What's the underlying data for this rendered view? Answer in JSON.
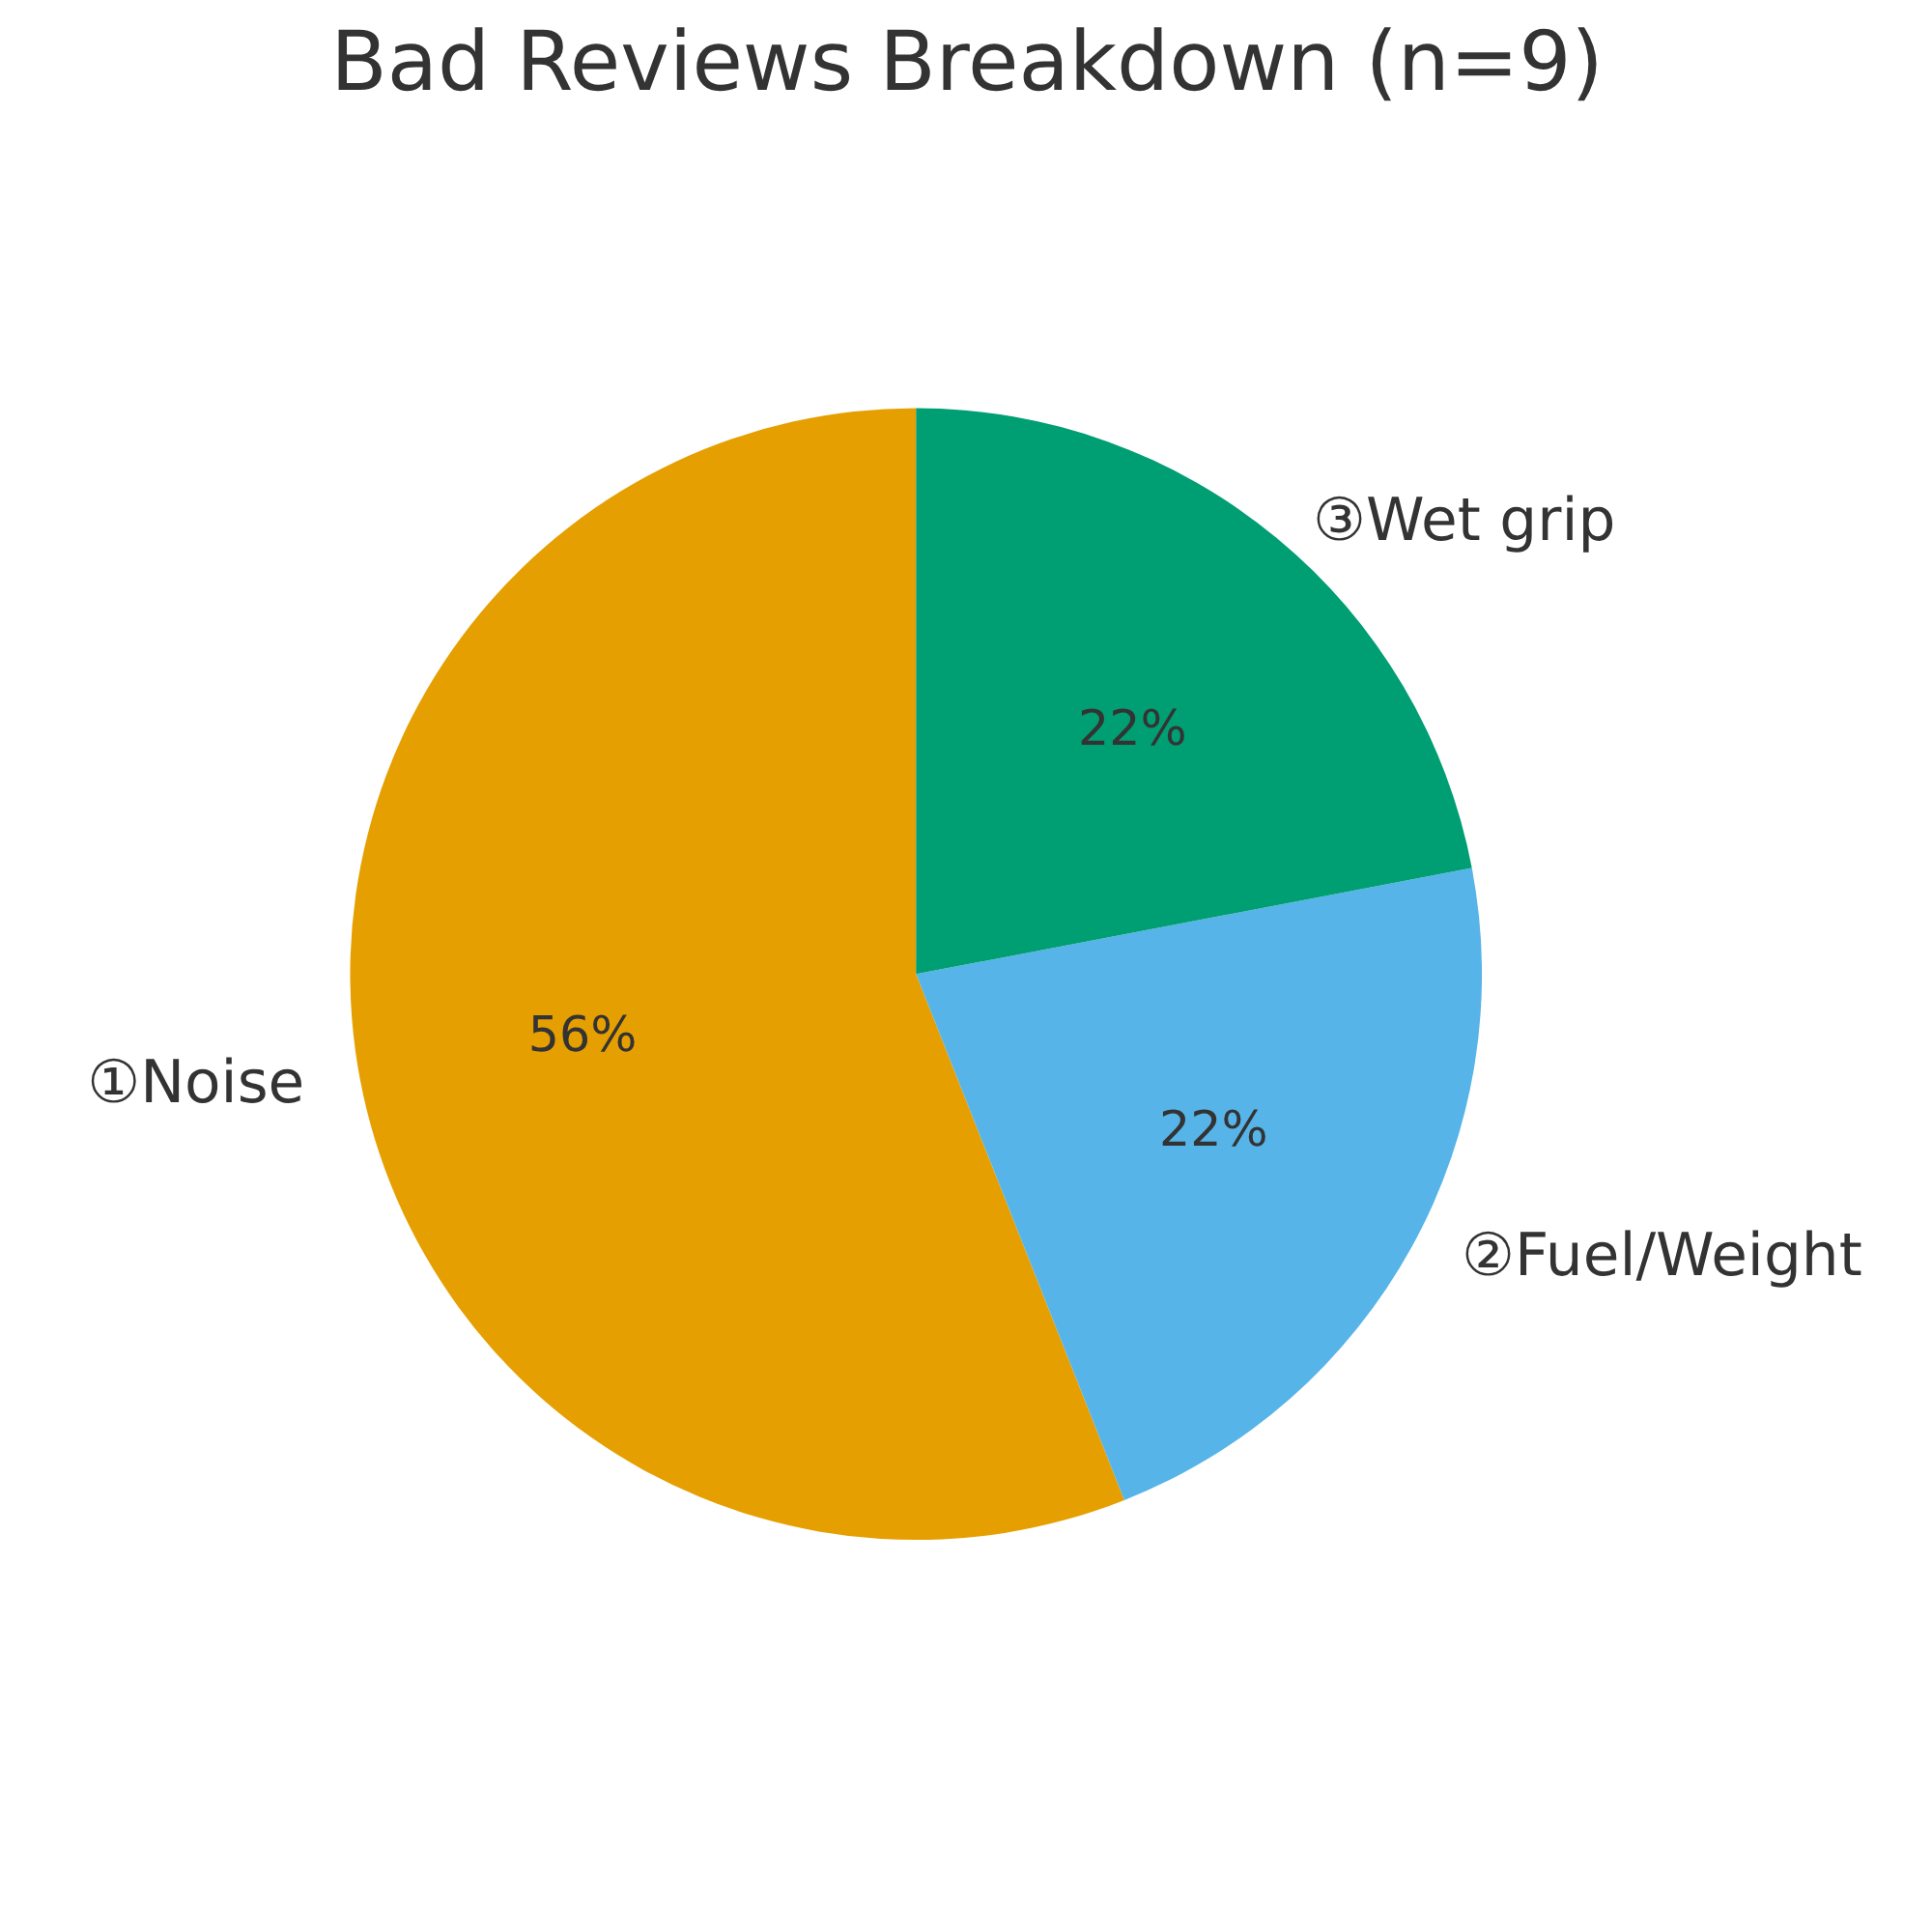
{
  "chart_data": {
    "type": "pie",
    "title": "Bad Reviews Breakdown (n=9)",
    "categories": [
      "①Noise",
      "②Fuel/Weight",
      "③Wet grip"
    ],
    "values": [
      56,
      22,
      22
    ],
    "colors": [
      "#e69f00",
      "#56b4e9",
      "#009e73"
    ],
    "value_labels": [
      "56%",
      "22%",
      "22%"
    ]
  }
}
